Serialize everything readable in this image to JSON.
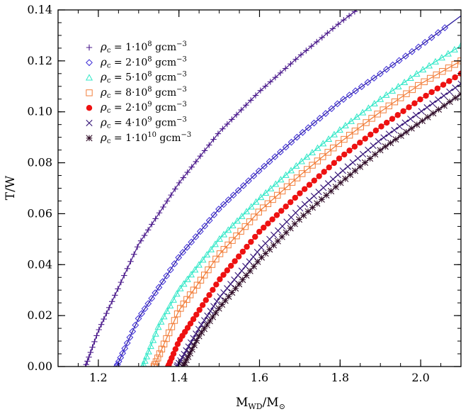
{
  "chart_data": {
    "type": "scatter",
    "xlabel": "M_WD/M_⊙",
    "xlabel_main": "M",
    "xlabel_sub": "WD",
    "xlabel_sep": "/M",
    "xlabel_sun": "⊙",
    "ylabel": "T/W",
    "xlim": [
      1.1,
      2.1
    ],
    "ylim": [
      0.0,
      0.14
    ],
    "x_ticks": [
      1.2,
      1.4,
      1.6,
      1.8,
      2.0
    ],
    "x_tick_labels": [
      "1.2",
      "1.4",
      "1.6",
      "1.8",
      "2.0"
    ],
    "y_ticks": [
      0.0,
      0.02,
      0.04,
      0.06,
      0.08,
      0.1,
      0.12,
      0.14
    ],
    "y_tick_labels": [
      "0.00",
      "0.02",
      "0.04",
      "0.06",
      "0.08",
      "0.10",
      "0.12",
      "0.14"
    ],
    "legend_position": "top-left",
    "series": [
      {
        "name": "ρc = 1·10^8 gcm^-3",
        "label_rho": "ρ",
        "label_sub": "c",
        "label_mid": " = 1·10",
        "label_exp": "8",
        "label_unit": " gcm",
        "label_unit_exp": "−3",
        "marker": "plus",
        "color": "#4b1a8c",
        "line_color": "#4b1a8c",
        "fit_x": [
          1.168,
          1.2,
          1.3,
          1.4,
          1.5,
          1.6,
          1.7,
          1.8,
          1.85
        ],
        "fit_y": [
          0.0,
          0.014,
          0.048,
          0.072,
          0.092,
          0.108,
          0.122,
          0.135,
          0.141
        ]
      },
      {
        "name": "ρc = 2·10^8 gcm^-3",
        "label_rho": "ρ",
        "label_sub": "c",
        "label_mid": " = 2·10",
        "label_exp": "8",
        "label_unit": " gcm",
        "label_unit_exp": "−3",
        "marker": "diamond",
        "color": "#3a2ad6",
        "line_color": "#2a1a9c",
        "fit_x": [
          1.245,
          1.3,
          1.4,
          1.5,
          1.6,
          1.7,
          1.8,
          1.9,
          2.0,
          2.06
        ],
        "fit_y": [
          0.0,
          0.019,
          0.043,
          0.062,
          0.077,
          0.091,
          0.104,
          0.115,
          0.126,
          0.133
        ]
      },
      {
        "name": "ρc = 5·10^8 gcm^-3",
        "label_rho": "ρ",
        "label_sub": "c",
        "label_mid": " = 5·10",
        "label_exp": "8",
        "label_unit": " gcm",
        "label_unit_exp": "−3",
        "marker": "triangle",
        "color": "#33e8c8",
        "line_color": "#33e8c8",
        "fit_x": [
          1.31,
          1.35,
          1.4,
          1.5,
          1.6,
          1.7,
          1.8,
          1.9,
          2.0,
          2.1
        ],
        "fit_y": [
          0.0,
          0.016,
          0.03,
          0.05,
          0.066,
          0.08,
          0.093,
          0.105,
          0.116,
          0.126
        ]
      },
      {
        "name": "ρc = 8·10^8 gcm^-3",
        "label_rho": "ρ",
        "label_sub": "c",
        "label_mid": " = 8·10",
        "label_exp": "8",
        "label_unit": " gcm",
        "label_unit_exp": "−3",
        "marker": "square",
        "color": "#f27f3c",
        "line_color": "#f27f3c",
        "fit_x": [
          1.338,
          1.4,
          1.5,
          1.6,
          1.7,
          1.8,
          1.9,
          2.0,
          2.1
        ],
        "fit_y": [
          0.0,
          0.022,
          0.044,
          0.061,
          0.075,
          0.088,
          0.1,
          0.111,
          0.12
        ]
      },
      {
        "name": "ρc = 2·10^9 gcm^-3",
        "label_rho": "ρ",
        "label_sub": "c",
        "label_mid": " = 2·10",
        "label_exp": "9",
        "label_unit": " gcm",
        "label_unit_exp": "−3",
        "marker": "circle",
        "color": "#ee1111",
        "line_color": "#cc1111",
        "fit_x": [
          1.373,
          1.4,
          1.5,
          1.6,
          1.7,
          1.8,
          1.9,
          2.0,
          2.1
        ],
        "fit_y": [
          0.0,
          0.01,
          0.034,
          0.053,
          0.068,
          0.082,
          0.094,
          0.105,
          0.115
        ]
      },
      {
        "name": "ρc = 4·10^9 gcm^-3",
        "label_rho": "ρ",
        "label_sub": "c",
        "label_mid": " = 4·10",
        "label_exp": "9",
        "label_unit": " gcm",
        "label_unit_exp": "−3",
        "marker": "cross",
        "color": "#3a1a7a",
        "line_color": "#3a1a7a",
        "fit_x": [
          1.395,
          1.45,
          1.5,
          1.6,
          1.7,
          1.8,
          1.9,
          2.0,
          2.1
        ],
        "fit_y": [
          0.0,
          0.015,
          0.027,
          0.046,
          0.062,
          0.076,
          0.089,
          0.1,
          0.111
        ]
      },
      {
        "name": "ρc = 1·10^10 gcm^-3",
        "label_rho": "ρ",
        "label_sub": "c",
        "label_mid": " = 1·10",
        "label_exp": "10",
        "label_unit": " gcm",
        "label_unit_exp": "−3",
        "marker": "asterisk",
        "color": "#33102a",
        "line_color": "#2a0a3a",
        "fit_x": [
          1.41,
          1.45,
          1.5,
          1.6,
          1.7,
          1.8,
          1.9,
          2.0,
          2.1
        ],
        "fit_y": [
          0.0,
          0.012,
          0.023,
          0.042,
          0.058,
          0.072,
          0.085,
          0.096,
          0.107
        ]
      }
    ]
  }
}
